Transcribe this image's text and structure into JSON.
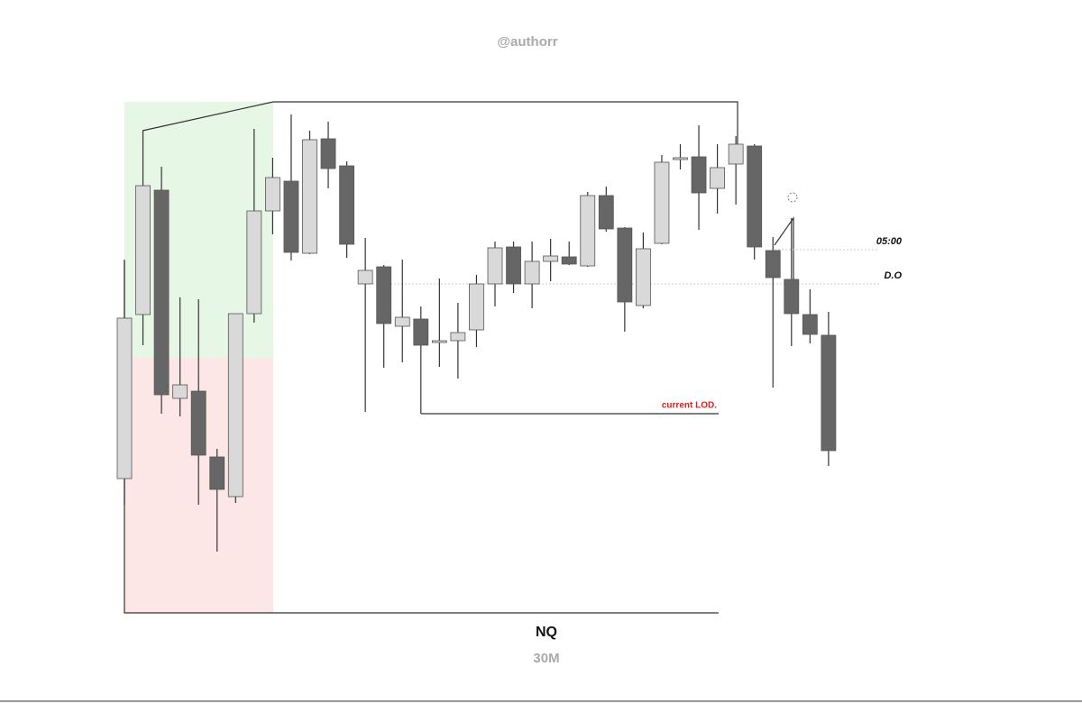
{
  "chart_data": {
    "type": "candlestick",
    "header": "@authorr",
    "title": "NQ",
    "subtitle": "30M",
    "ylim": [
      0,
      780
    ],
    "up_color": "#d9d9d9",
    "down_color": "#666666",
    "open": [
      249,
      431,
      569,
      338,
      346,
      273,
      229,
      432,
      546,
      579,
      499,
      626,
      596,
      465,
      484,
      418,
      426,
      400,
      402,
      414,
      465,
      506,
      465,
      490,
      495,
      485,
      563,
      527,
      441,
      510,
      603,
      606,
      571,
      598,
      618,
      502,
      470,
      431,
      408
    ],
    "high": [
      492,
      635,
      595,
      450,
      448,
      282,
      432,
      637,
      605,
      653,
      635,
      645,
      601,
      516,
      486,
      492,
      440,
      471,
      444,
      475,
      512,
      512,
      512,
      515,
      512,
      567,
      573,
      528,
      522,
      608,
      620,
      641,
      620,
      629,
      620,
      517,
      538,
      459,
      434
    ],
    "low": [
      220,
      397,
      321,
      318,
      220,
      168,
      222,
      422,
      520,
      491,
      498,
      571,
      494,
      323,
      372,
      378,
      321,
      373,
      360,
      395,
      440,
      455,
      438,
      468,
      486,
      484,
      523,
      412,
      438,
      509,
      592,
      525,
      543,
      553,
      492,
      350,
      396,
      399,
      263
    ],
    "close": [
      427,
      574,
      342,
      353,
      275,
      237,
      432,
      546,
      583,
      500,
      625,
      593,
      509,
      480,
      421,
      428,
      397,
      402,
      411,
      465,
      505,
      465,
      490,
      496,
      487,
      563,
      526,
      445,
      504,
      600,
      605,
      566,
      594,
      620,
      506,
      472,
      432,
      409,
      280
    ],
    "levels": [
      {
        "label": "05:00",
        "value": 503
      },
      {
        "label": "D.O",
        "value": 465
      },
      {
        "label": "current LOD.",
        "value": 321
      }
    ]
  }
}
